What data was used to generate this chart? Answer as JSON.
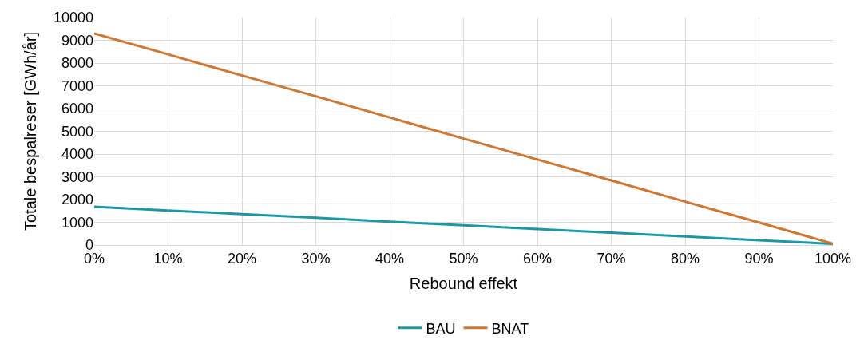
{
  "chart_data": {
    "type": "line",
    "xlabel": "Rebound effekt",
    "ylabel": "Totale bespalreser [GWh/år]",
    "x": [
      0,
      10,
      20,
      30,
      40,
      50,
      60,
      70,
      80,
      90,
      100
    ],
    "series": [
      {
        "name": "BAU",
        "color": "#1b98a8",
        "values": [
          1680,
          1520,
          1360,
          1200,
          1030,
          870,
          700,
          540,
          380,
          210,
          50
        ]
      },
      {
        "name": "BNAT",
        "color": "#d2752e",
        "values": [
          9300,
          8380,
          7450,
          6540,
          5610,
          4680,
          3760,
          2840,
          1910,
          990,
          60
        ]
      }
    ],
    "xlim": [
      0,
      100
    ],
    "xticks": [
      {
        "value": 0,
        "label": "0%"
      },
      {
        "value": 10,
        "label": "10%"
      },
      {
        "value": 20,
        "label": "20%"
      },
      {
        "value": 30,
        "label": "30%"
      },
      {
        "value": 40,
        "label": "40%"
      },
      {
        "value": 50,
        "label": "50%"
      },
      {
        "value": 60,
        "label": "60%"
      },
      {
        "value": 70,
        "label": "70%"
      },
      {
        "value": 80,
        "label": "80%"
      },
      {
        "value": 90,
        "label": "90%"
      },
      {
        "value": 100,
        "label": "100%"
      }
    ],
    "ylim": [
      0,
      10000
    ],
    "yticks": [
      0,
      1000,
      2000,
      3000,
      4000,
      5000,
      6000,
      7000,
      8000,
      9000,
      10000
    ],
    "grid": true,
    "legend": "bottom",
    "marker": "none",
    "line_style": "solid"
  }
}
